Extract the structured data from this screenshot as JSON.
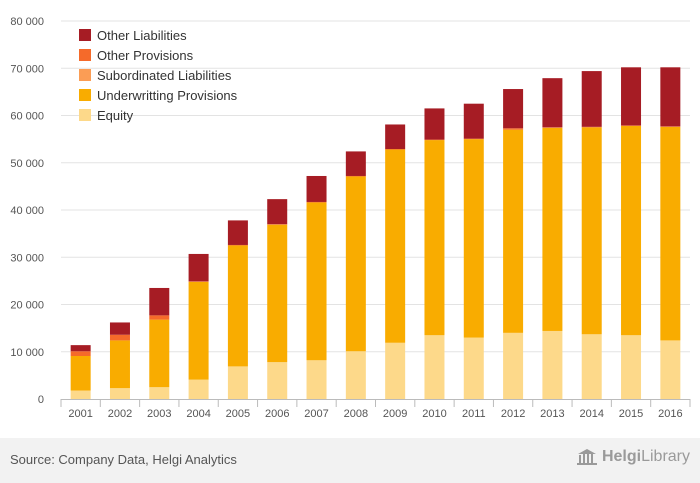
{
  "chart_data": {
    "type": "bar",
    "stacked": true,
    "categories": [
      "2001",
      "2002",
      "2003",
      "2004",
      "2005",
      "2006",
      "2007",
      "2008",
      "2009",
      "2010",
      "2011",
      "2012",
      "2013",
      "2014",
      "2015",
      "2016"
    ],
    "series": [
      {
        "name": "Equity",
        "color": "#fdd98a",
        "values": [
          1800,
          2300,
          2500,
          4100,
          6900,
          7800,
          8200,
          10100,
          11900,
          13500,
          13000,
          14000,
          14400,
          13700,
          13500,
          12400
        ]
      },
      {
        "name": "Underwritting Provisions",
        "color": "#f9ac00",
        "values": [
          7300,
          10100,
          14300,
          20700,
          25600,
          29100,
          33400,
          37000,
          40900,
          41300,
          42000,
          43000,
          43000,
          43800,
          44300,
          45200
        ]
      },
      {
        "name": "Subordinated Liabilities",
        "color": "#fb9d55",
        "values": [
          0,
          0,
          0,
          0,
          0,
          0,
          0,
          0,
          0,
          0,
          0,
          0,
          0,
          0,
          0,
          0
        ]
      },
      {
        "name": "Other Provisions",
        "color": "#f56a2a",
        "values": [
          1000,
          1200,
          900,
          100,
          100,
          100,
          100,
          100,
          100,
          100,
          100,
          300,
          100,
          100,
          100,
          100
        ]
      },
      {
        "name": "Other Liabilities",
        "color": "#a61c24",
        "values": [
          1300,
          2600,
          5800,
          5800,
          5200,
          5300,
          5500,
          5200,
          5200,
          6600,
          7400,
          8300,
          10400,
          11800,
          12300,
          12500
        ]
      }
    ],
    "legend_order": [
      "Other Liabilities",
      "Other Provisions",
      "Subordinated Liabilities",
      "Underwritting Provisions",
      "Equity"
    ],
    "y_ticks": [
      "0",
      "10 000",
      "20 000",
      "30 000",
      "40 000",
      "50 000",
      "60 000",
      "70 000",
      "80 000"
    ],
    "ylim": [
      0,
      80000
    ],
    "grid": true,
    "legend_position": "top-left"
  },
  "footer": {
    "source": "Source: Company Data, Helgi Analytics",
    "logo_bold": "Helgi",
    "logo_light": "Library"
  },
  "colors": {
    "gridline": "#e3e3e3",
    "axis": "#bbbbbb"
  }
}
